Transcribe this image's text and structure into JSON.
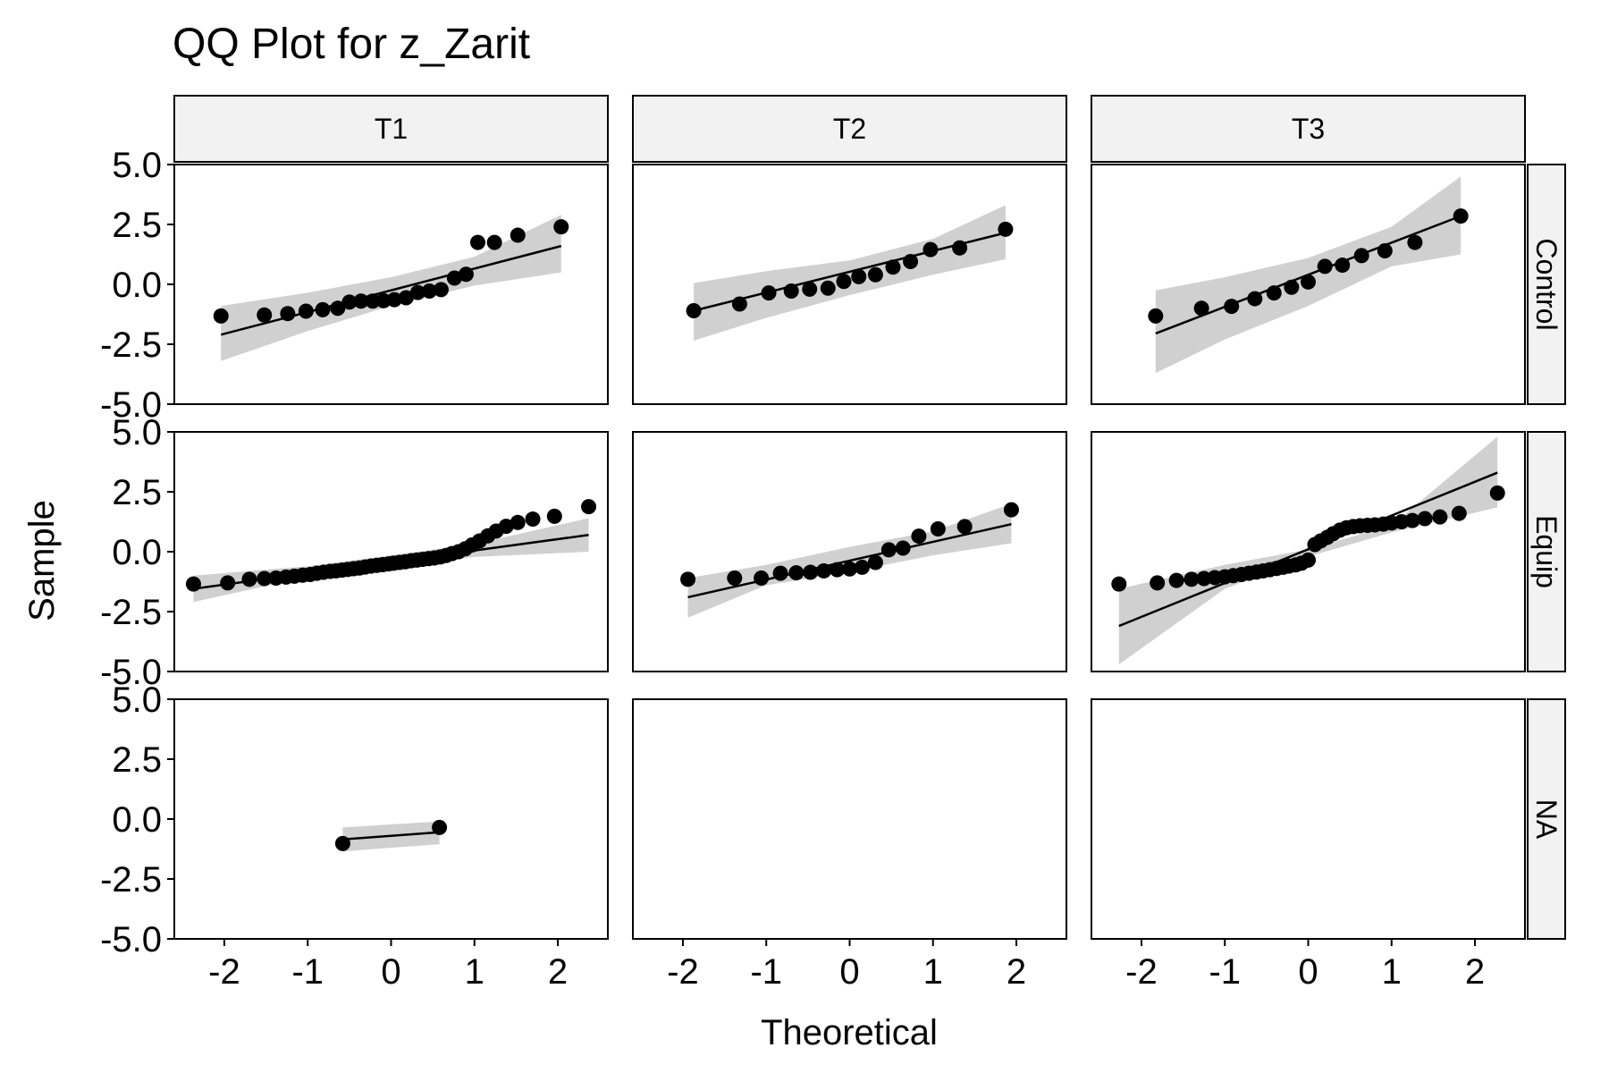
{
  "chart_data": {
    "type": "scatter",
    "title": "QQ Plot for z_Zarit",
    "xlabel": "Theoretical",
    "ylabel": "Sample",
    "col_facets": [
      "T1",
      "T2",
      "T3"
    ],
    "row_facets": [
      "Control",
      "Equip",
      "NA"
    ],
    "xlim": [
      -2.6,
      2.6
    ],
    "ylim": [
      -5.0,
      5.0
    ],
    "x_ticks": [
      "-2",
      "-1",
      "0",
      "1",
      "2"
    ],
    "y_ticks": [
      "5.0",
      "2.5",
      "0.0",
      "-2.5",
      "-5.0"
    ],
    "panels": [
      {
        "row": "Control",
        "col": "T1",
        "points": [
          [
            -2.04,
            -1.32
          ],
          [
            -1.52,
            -1.28
          ],
          [
            -1.24,
            -1.22
          ],
          [
            -1.02,
            -1.12
          ],
          [
            -0.82,
            -1.06
          ],
          [
            -0.64,
            -1.0
          ],
          [
            -0.5,
            -0.74
          ],
          [
            -0.36,
            -0.7
          ],
          [
            -0.22,
            -0.7
          ],
          [
            -0.09,
            -0.68
          ],
          [
            0.04,
            -0.64
          ],
          [
            0.18,
            -0.56
          ],
          [
            0.32,
            -0.34
          ],
          [
            0.46,
            -0.28
          ],
          [
            0.6,
            -0.22
          ],
          [
            0.76,
            0.26
          ],
          [
            0.9,
            0.42
          ],
          [
            1.04,
            1.75
          ],
          [
            1.24,
            1.75
          ],
          [
            1.52,
            2.05
          ],
          [
            2.04,
            2.4
          ]
        ],
        "line": [
          [
            -2.04,
            -2.1
          ],
          [
            2.04,
            1.6
          ]
        ],
        "band_upper": [
          [
            -2.04,
            -0.9
          ],
          [
            -1,
            -0.35
          ],
          [
            0,
            0.3
          ],
          [
            1,
            1.15
          ],
          [
            2.04,
            2.9
          ]
        ],
        "band_lower": [
          [
            -2.04,
            -3.2
          ],
          [
            -1,
            -1.95
          ],
          [
            0,
            -0.9
          ],
          [
            1,
            -0.05
          ],
          [
            2.04,
            0.5
          ]
        ]
      },
      {
        "row": "Control",
        "col": "T2",
        "points": [
          [
            -1.87,
            -1.1
          ],
          [
            -1.32,
            -0.82
          ],
          [
            -0.97,
            -0.36
          ],
          [
            -0.7,
            -0.28
          ],
          [
            -0.48,
            -0.2
          ],
          [
            -0.26,
            -0.16
          ],
          [
            -0.07,
            0.12
          ],
          [
            0.11,
            0.32
          ],
          [
            0.31,
            0.4
          ],
          [
            0.52,
            0.72
          ],
          [
            0.73,
            0.95
          ],
          [
            0.97,
            1.45
          ],
          [
            1.32,
            1.52
          ],
          [
            1.87,
            2.3
          ]
        ],
        "line": [
          [
            -1.87,
            -1.1
          ],
          [
            1.87,
            2.15
          ]
        ],
        "band_upper": [
          [
            -1.87,
            0.05
          ],
          [
            -1,
            0.55
          ],
          [
            0,
            1.0
          ],
          [
            1,
            1.9
          ],
          [
            1.87,
            3.3
          ]
        ],
        "band_lower": [
          [
            -1.87,
            -2.35
          ],
          [
            -1,
            -1.4
          ],
          [
            0,
            -0.45
          ],
          [
            1,
            0.4
          ],
          [
            1.87,
            1.05
          ]
        ]
      },
      {
        "row": "Control",
        "col": "T3",
        "points": [
          [
            -1.83,
            -1.32
          ],
          [
            -1.28,
            -1.0
          ],
          [
            -0.92,
            -0.92
          ],
          [
            -0.64,
            -0.6
          ],
          [
            -0.41,
            -0.36
          ],
          [
            -0.2,
            -0.12
          ],
          [
            0.0,
            0.1
          ],
          [
            0.2,
            0.75
          ],
          [
            0.41,
            0.8
          ],
          [
            0.64,
            1.2
          ],
          [
            0.92,
            1.4
          ],
          [
            1.28,
            1.75
          ],
          [
            1.83,
            2.85
          ]
        ],
        "line": [
          [
            -1.83,
            -2.05
          ],
          [
            1.83,
            2.85
          ]
        ],
        "band_upper": [
          [
            -1.83,
            -0.25
          ],
          [
            -1,
            0.3
          ],
          [
            0,
            1.1
          ],
          [
            1,
            2.4
          ],
          [
            1.83,
            4.5
          ]
        ],
        "band_lower": [
          [
            -1.83,
            -3.7
          ],
          [
            -1,
            -2.3
          ],
          [
            0,
            -0.9
          ],
          [
            1,
            0.75
          ],
          [
            1.83,
            1.25
          ]
        ]
      },
      {
        "row": "Equip",
        "col": "T1",
        "points": [
          [
            -2.37,
            -1.35
          ],
          [
            -1.96,
            -1.3
          ],
          [
            -1.7,
            -1.15
          ],
          [
            -1.52,
            -1.12
          ],
          [
            -1.38,
            -1.1
          ],
          [
            -1.26,
            -1.06
          ],
          [
            -1.16,
            -1.02
          ],
          [
            -1.06,
            -0.98
          ],
          [
            -0.97,
            -0.95
          ],
          [
            -0.89,
            -0.9
          ],
          [
            -0.81,
            -0.86
          ],
          [
            -0.73,
            -0.82
          ],
          [
            -0.66,
            -0.8
          ],
          [
            -0.59,
            -0.77
          ],
          [
            -0.52,
            -0.74
          ],
          [
            -0.45,
            -0.71
          ],
          [
            -0.38,
            -0.68
          ],
          [
            -0.31,
            -0.64
          ],
          [
            -0.24,
            -0.6
          ],
          [
            -0.17,
            -0.57
          ],
          [
            -0.1,
            -0.54
          ],
          [
            -0.03,
            -0.51
          ],
          [
            0.03,
            -0.48
          ],
          [
            0.1,
            -0.45
          ],
          [
            0.17,
            -0.42
          ],
          [
            0.24,
            -0.38
          ],
          [
            0.31,
            -0.35
          ],
          [
            0.38,
            -0.32
          ],
          [
            0.45,
            -0.29
          ],
          [
            0.52,
            -0.26
          ],
          [
            0.59,
            -0.22
          ],
          [
            0.66,
            -0.16
          ],
          [
            0.73,
            -0.08
          ],
          [
            0.81,
            0.0
          ],
          [
            0.89,
            0.12
          ],
          [
            0.97,
            0.28
          ],
          [
            1.06,
            0.45
          ],
          [
            1.16,
            0.66
          ],
          [
            1.26,
            0.86
          ],
          [
            1.38,
            1.06
          ],
          [
            1.52,
            1.22
          ],
          [
            1.7,
            1.36
          ],
          [
            1.96,
            1.48
          ],
          [
            2.37,
            1.88
          ]
        ],
        "line": [
          [
            -2.37,
            -1.55
          ],
          [
            2.37,
            0.7
          ]
        ],
        "band_upper": [
          [
            -2.37,
            -1.0
          ],
          [
            -1,
            -0.6
          ],
          [
            0,
            -0.15
          ],
          [
            1,
            0.32
          ],
          [
            2.37,
            1.4
          ]
        ],
        "band_lower": [
          [
            -2.37,
            -2.1
          ],
          [
            -1,
            -1.05
          ],
          [
            0,
            -0.6
          ],
          [
            1,
            -0.22
          ],
          [
            2.37,
            0.0
          ]
        ]
      },
      {
        "row": "Equip",
        "col": "T2",
        "points": [
          [
            -1.94,
            -1.15
          ],
          [
            -1.38,
            -1.1
          ],
          [
            -1.06,
            -1.1
          ],
          [
            -0.83,
            -0.9
          ],
          [
            -0.64,
            -0.88
          ],
          [
            -0.47,
            -0.86
          ],
          [
            -0.31,
            -0.8
          ],
          [
            -0.15,
            -0.75
          ],
          [
            0.0,
            -0.72
          ],
          [
            0.15,
            -0.65
          ],
          [
            0.31,
            -0.45
          ],
          [
            0.47,
            0.08
          ],
          [
            0.64,
            0.15
          ],
          [
            0.83,
            0.65
          ],
          [
            1.06,
            0.95
          ],
          [
            1.38,
            1.05
          ],
          [
            1.94,
            1.75
          ]
        ],
        "line": [
          [
            -1.94,
            -1.9
          ],
          [
            1.94,
            1.15
          ]
        ],
        "band_upper": [
          [
            -1.94,
            -1.1
          ],
          [
            -1,
            -0.55
          ],
          [
            0,
            0.2
          ],
          [
            1,
            0.85
          ],
          [
            1.94,
            2.0
          ]
        ],
        "band_lower": [
          [
            -1.94,
            -2.75
          ],
          [
            -1,
            -1.4
          ],
          [
            0,
            -0.85
          ],
          [
            1,
            -0.15
          ],
          [
            1.94,
            0.35
          ]
        ]
      },
      {
        "row": "Equip",
        "col": "T3",
        "points": [
          [
            -2.27,
            -1.35
          ],
          [
            -1.81,
            -1.3
          ],
          [
            -1.58,
            -1.2
          ],
          [
            -1.4,
            -1.15
          ],
          [
            -1.25,
            -1.12
          ],
          [
            -1.12,
            -1.08
          ],
          [
            -1.0,
            -1.05
          ],
          [
            -0.9,
            -1.0
          ],
          [
            -0.8,
            -0.95
          ],
          [
            -0.71,
            -0.9
          ],
          [
            -0.62,
            -0.85
          ],
          [
            -0.54,
            -0.8
          ],
          [
            -0.46,
            -0.75
          ],
          [
            -0.38,
            -0.7
          ],
          [
            -0.3,
            -0.65
          ],
          [
            -0.23,
            -0.6
          ],
          [
            -0.15,
            -0.55
          ],
          [
            -0.08,
            -0.48
          ],
          [
            0.0,
            -0.35
          ],
          [
            0.08,
            0.3
          ],
          [
            0.15,
            0.45
          ],
          [
            0.23,
            0.6
          ],
          [
            0.3,
            0.75
          ],
          [
            0.38,
            0.9
          ],
          [
            0.46,
            1.0
          ],
          [
            0.54,
            1.05
          ],
          [
            0.62,
            1.08
          ],
          [
            0.71,
            1.1
          ],
          [
            0.8,
            1.12
          ],
          [
            0.9,
            1.15
          ],
          [
            1.0,
            1.2
          ],
          [
            1.12,
            1.25
          ],
          [
            1.25,
            1.3
          ],
          [
            1.4,
            1.38
          ],
          [
            1.58,
            1.45
          ],
          [
            1.81,
            1.6
          ],
          [
            2.27,
            2.45
          ]
        ],
        "line": [
          [
            -2.27,
            -3.1
          ],
          [
            2.27,
            3.3
          ]
        ],
        "band_upper": [
          [
            -2.27,
            -1.55
          ],
          [
            -1,
            -0.55
          ],
          [
            0,
            0.1
          ],
          [
            1,
            1.1
          ],
          [
            2.27,
            4.8
          ]
        ],
        "band_lower": [
          [
            -2.27,
            -4.7
          ],
          [
            -1,
            -1.55
          ],
          [
            0,
            -0.2
          ],
          [
            1,
            0.8
          ],
          [
            2.27,
            1.85
          ]
        ]
      },
      {
        "row": "NA",
        "col": "T1",
        "points": [
          [
            -0.58,
            -1.02
          ],
          [
            0.58,
            -0.35
          ]
        ],
        "line": [
          [
            -0.58,
            -0.85
          ],
          [
            0.58,
            -0.55
          ]
        ],
        "band_upper": [
          [
            -0.58,
            -0.35
          ],
          [
            0.58,
            -0.1
          ]
        ],
        "band_lower": [
          [
            -0.58,
            -1.35
          ],
          [
            0.58,
            -1.05
          ]
        ]
      },
      {
        "row": "NA",
        "col": "T2",
        "points": [],
        "line": [],
        "band_upper": [],
        "band_lower": []
      },
      {
        "row": "NA",
        "col": "T3",
        "points": [],
        "line": [],
        "band_upper": [],
        "band_lower": []
      }
    ]
  }
}
